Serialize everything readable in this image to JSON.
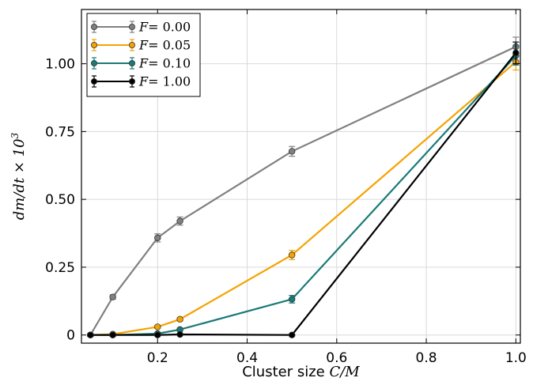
{
  "chart_data": {
    "type": "line",
    "xlabel": "Cluster size C/M",
    "xlabel_prefix": "Cluster size ",
    "xlabel_math": "C/M",
    "ylabel": "dm/dt × 10^3",
    "ylabel_math": "dm/dt × 10",
    "ylabel_exp": "3",
    "xlim": [
      0.03,
      1.01
    ],
    "ylim": [
      -0.03,
      1.2
    ],
    "x_ticks": [
      0.2,
      0.4,
      0.6,
      0.8,
      1.0
    ],
    "x_tick_labels": [
      "0.2",
      "0.4",
      "0.6",
      "0.8",
      "1.0"
    ],
    "y_ticks": [
      0,
      0.25,
      0.5,
      0.75,
      1.0
    ],
    "y_tick_labels": [
      "0",
      "0.25",
      "0.50",
      "0.75",
      "1.00"
    ],
    "grid": true,
    "legend_position": "top-left",
    "series": [
      {
        "name": "F = 0.00",
        "color": "#808080",
        "x": [
          0.05,
          0.1,
          0.2,
          0.25,
          0.5,
          1.0
        ],
        "y": [
          0.0,
          0.14,
          0.358,
          0.42,
          0.677,
          1.063
        ],
        "err": [
          0.005,
          0.008,
          0.015,
          0.015,
          0.018,
          0.035
        ]
      },
      {
        "name": "F = 0.05",
        "color": "#f5a300",
        "x": [
          0.05,
          0.1,
          0.2,
          0.25,
          0.5,
          1.0
        ],
        "y": [
          0.0,
          0.003,
          0.03,
          0.058,
          0.295,
          1.007
        ],
        "err": [
          0.004,
          0.004,
          0.005,
          0.006,
          0.017,
          0.03
        ]
      },
      {
        "name": "F = 0.10",
        "color": "#1a7a78",
        "x": [
          0.05,
          0.1,
          0.2,
          0.25,
          0.5,
          1.0
        ],
        "y": [
          0.0,
          0.0,
          0.005,
          0.02,
          0.132,
          1.03
        ],
        "err": [
          0.004,
          0.004,
          0.004,
          0.005,
          0.014,
          0.035
        ]
      },
      {
        "name": "F = 1.00",
        "color": "#000000",
        "x": [
          0.05,
          0.1,
          0.2,
          0.25,
          0.5,
          1.0
        ],
        "y": [
          0.0,
          0.0,
          0.0,
          0.002,
          0.0,
          1.04
        ],
        "err": [
          0.003,
          0.003,
          0.003,
          0.003,
          0.003,
          0.04
        ]
      }
    ],
    "legend_labels": [
      {
        "lhs": "F",
        "rhs": "= 0.00"
      },
      {
        "lhs": "F",
        "rhs": "= 0.05"
      },
      {
        "lhs": "F",
        "rhs": "= 0.10"
      },
      {
        "lhs": "F",
        "rhs": "= 1.00"
      }
    ]
  }
}
